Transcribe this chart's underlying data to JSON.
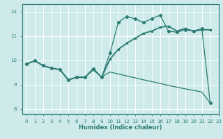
{
  "title": "",
  "xlabel": "Humidex (Indice chaleur)",
  "bg_color": "#ceeaea",
  "grid_color": "#ffffff",
  "line_color": "#2a7b72",
  "xlim": [
    -0.5,
    23
  ],
  "ylim": [
    7.8,
    12.3
  ],
  "xticks": [
    0,
    1,
    2,
    3,
    4,
    5,
    6,
    7,
    8,
    9,
    10,
    11,
    12,
    13,
    14,
    15,
    16,
    17,
    18,
    19,
    20,
    21,
    22,
    23
  ],
  "yticks": [
    8,
    9,
    10,
    11,
    12
  ],
  "line1_x": [
    0,
    1,
    2,
    3,
    4,
    5,
    6,
    7,
    8,
    9,
    10,
    11,
    12,
    13,
    14,
    15,
    16,
    17,
    18,
    19,
    20,
    21,
    22
  ],
  "line1_y": [
    9.85,
    9.98,
    9.78,
    9.68,
    9.62,
    9.2,
    9.3,
    9.3,
    9.65,
    9.3,
    10.3,
    11.55,
    11.8,
    11.7,
    11.55,
    11.7,
    11.85,
    11.2,
    11.15,
    11.25,
    11.2,
    11.3,
    8.25
  ],
  "line2_x": [
    0,
    1,
    2,
    3,
    4,
    5,
    6,
    7,
    8,
    9,
    10,
    11,
    12,
    13,
    14,
    15,
    16,
    17,
    18,
    19,
    20,
    21,
    22
  ],
  "line2_y": [
    9.85,
    9.98,
    9.78,
    9.68,
    9.62,
    9.2,
    9.3,
    9.3,
    9.65,
    9.3,
    10.05,
    10.45,
    10.7,
    10.9,
    11.1,
    11.2,
    11.35,
    11.4,
    11.2,
    11.3,
    11.2,
    11.25,
    11.25
  ],
  "line3_x": [
    0,
    1,
    2,
    3,
    4,
    5,
    6,
    7,
    8,
    9,
    10,
    11,
    12,
    13,
    14,
    15,
    16,
    17,
    18,
    19,
    20,
    21,
    22
  ],
  "line3_y": [
    9.85,
    9.98,
    9.78,
    9.68,
    9.62,
    9.18,
    9.32,
    9.32,
    9.6,
    9.32,
    9.52,
    9.44,
    9.36,
    9.28,
    9.2,
    9.13,
    9.05,
    8.97,
    8.9,
    8.83,
    8.77,
    8.7,
    8.25
  ]
}
